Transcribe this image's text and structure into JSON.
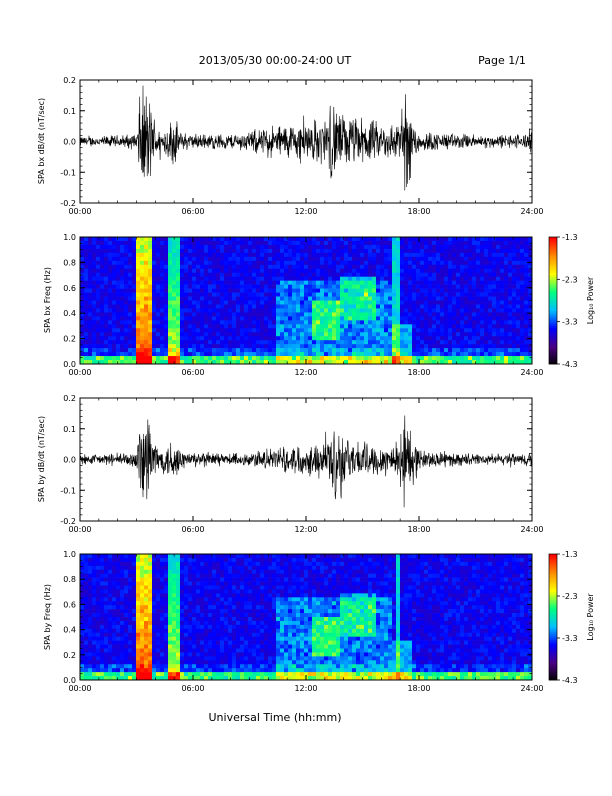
{
  "header": {
    "title": "2013/05/30  00:00-24:00 UT",
    "page": "Page 1/1"
  },
  "footer": {
    "xlabel": "Universal Time (hh:mm)"
  },
  "colors": {
    "waveform": "#000000",
    "spectrogram_background": "#3a0a6e",
    "colormap": [
      "#000000",
      "#4b0082",
      "#0000ff",
      "#00bfff",
      "#00ff7f",
      "#ffff00",
      "#ff8c00",
      "#ff0000"
    ]
  },
  "chart_data": [
    {
      "type": "line",
      "name": "bx-waveform",
      "ylabel": "SPA bx dB/dt (nT/sec)",
      "ylim": [
        -0.2,
        0.2
      ],
      "yticks": [
        "0.2",
        "0.1",
        "0.0",
        "-0.1",
        "-0.2"
      ],
      "xlim": [
        "00:00",
        "24:00"
      ],
      "xticks": [
        "00:00",
        "06:00",
        "12:00",
        "18:00",
        "24:00"
      ],
      "envelope": {
        "x_hours": [
          0,
          1,
          2,
          3,
          3.2,
          3.6,
          4,
          4.3,
          5,
          5.3,
          6,
          8,
          9,
          10,
          11,
          12,
          13,
          13.5,
          14,
          15,
          16,
          17,
          17.3,
          18,
          20,
          22,
          23.5,
          24
        ],
        "amplitude": [
          0.02,
          0.02,
          0.025,
          0.03,
          0.2,
          0.2,
          0.08,
          0.04,
          0.1,
          0.04,
          0.03,
          0.03,
          0.04,
          0.06,
          0.07,
          0.08,
          0.09,
          0.16,
          0.1,
          0.09,
          0.07,
          0.08,
          0.2,
          0.04,
          0.03,
          0.025,
          0.03,
          0.05
        ]
      }
    },
    {
      "type": "heatmap",
      "name": "bx-spectrogram",
      "ylabel": "SPA bx Freq (Hz)",
      "ylim": [
        0.0,
        1.0
      ],
      "yticks": [
        "1.0",
        "0.8",
        "0.6",
        "0.4",
        "0.2",
        "0.0"
      ],
      "xlim": [
        "00:00",
        "24:00"
      ],
      "xticks": [
        "00:00",
        "06:00",
        "12:00",
        "18:00",
        "24:00"
      ],
      "colorbar": {
        "label": "Log₁₀ Power",
        "ticks": [
          "-1.3",
          "-2.3",
          "-3.3",
          "-4.3"
        ],
        "range": [
          -4.3,
          -1.3
        ]
      }
    },
    {
      "type": "line",
      "name": "by-waveform",
      "ylabel": "SPA by dB/dt (nT/sec)",
      "ylim": [
        -0.2,
        0.2
      ],
      "yticks": [
        "0.2",
        "0.1",
        "0.0",
        "-0.1",
        "-0.2"
      ],
      "xlim": [
        "00:00",
        "24:00"
      ],
      "xticks": [
        "00:00",
        "06:00",
        "12:00",
        "18:00",
        "24:00"
      ],
      "envelope": {
        "x_hours": [
          0,
          1,
          2,
          3,
          3.2,
          3.6,
          4,
          4.3,
          5,
          5.3,
          6,
          8,
          9,
          10,
          11,
          12,
          13,
          13.8,
          14,
          15,
          16,
          17,
          17.2,
          18,
          20,
          22,
          23.5,
          24
        ],
        "amplitude": [
          0.02,
          0.02,
          0.025,
          0.03,
          0.2,
          0.2,
          0.08,
          0.04,
          0.1,
          0.04,
          0.03,
          0.025,
          0.03,
          0.04,
          0.05,
          0.06,
          0.07,
          0.2,
          0.08,
          0.07,
          0.06,
          0.07,
          0.2,
          0.04,
          0.025,
          0.02,
          0.025,
          0.04
        ]
      }
    },
    {
      "type": "heatmap",
      "name": "by-spectrogram",
      "ylabel": "SPA by Freq (Hz)",
      "ylim": [
        0.0,
        1.0
      ],
      "yticks": [
        "1.0",
        "0.8",
        "0.6",
        "0.4",
        "0.2",
        "0.0"
      ],
      "xlim": [
        "00:00",
        "24:00"
      ],
      "xticks": [
        "00:00",
        "06:00",
        "12:00",
        "18:00",
        "24:00"
      ],
      "colorbar": {
        "label": "Log₁₀ Power",
        "ticks": [
          "-1.3",
          "-2.3",
          "-3.3",
          "-4.3"
        ],
        "range": [
          -4.3,
          -1.3
        ]
      }
    }
  ]
}
